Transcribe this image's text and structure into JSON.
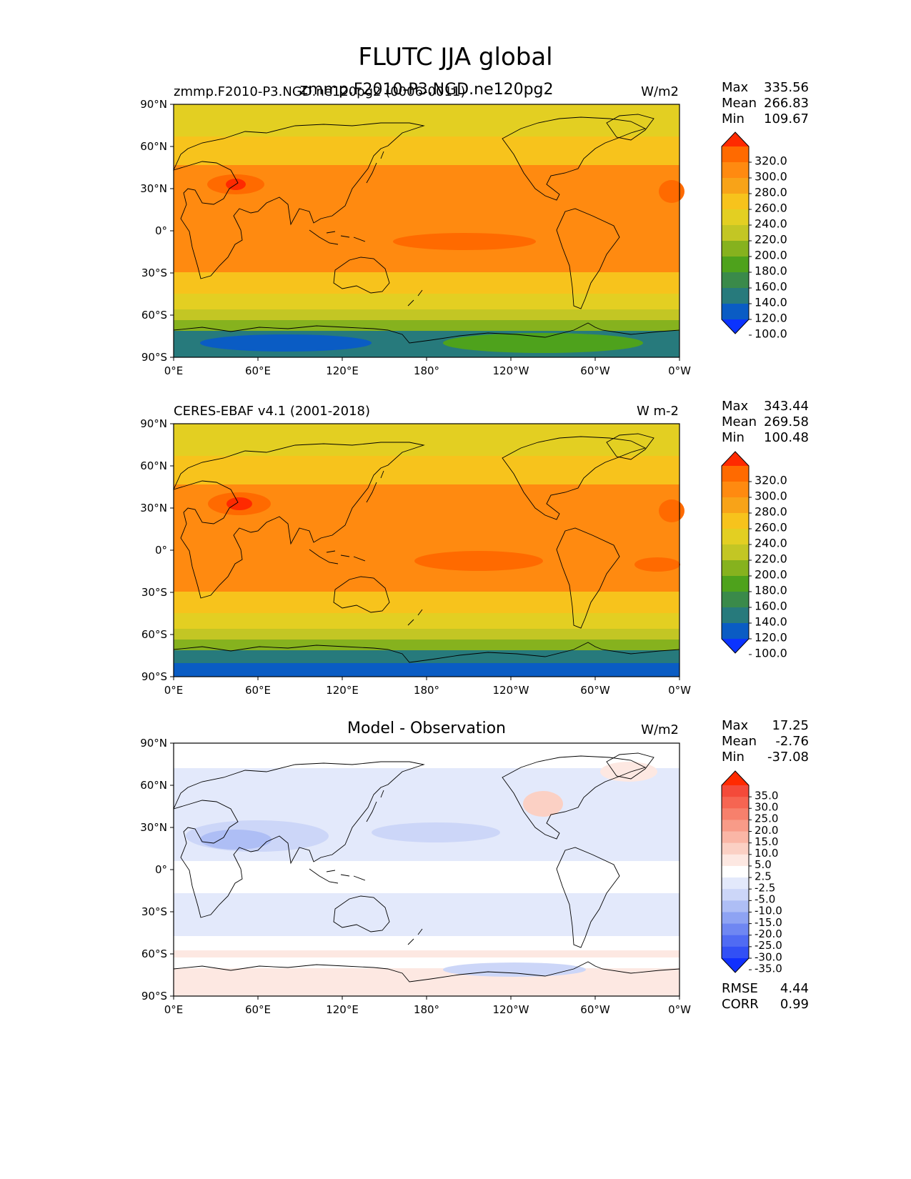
{
  "suptitle": "FLUTC JJA global",
  "panels": [
    {
      "id": "test",
      "title_left": "zmmp.F2010-P3.NGD.ne120pg2 (0006-0011)",
      "title_center": "zmmp.F2010-P3.NGD.ne120pg2",
      "title_right": "W/m2",
      "stats": {
        "max_label": "Max",
        "max": "335.56",
        "mean_label": "Mean",
        "mean": "266.83",
        "min_label": "Min",
        "min": "109.67"
      },
      "colorbar": {
        "labels": [
          "320.0",
          "300.0",
          "280.0",
          "260.0",
          "240.0",
          "220.0",
          "200.0",
          "180.0",
          "160.0",
          "140.0",
          "120.0",
          "100.0"
        ],
        "colors": [
          "#ff2a00",
          "#ff6a00",
          "#ff8a10",
          "#f8a318",
          "#f7c31c",
          "#e3cf22",
          "#c3c624",
          "#86b21e",
          "#4ea21c",
          "#3a8a4a",
          "#277a7c",
          "#0a5cc4",
          "#0b33ff"
        ]
      }
    },
    {
      "id": "ref",
      "title_left": "CERES-EBAF v4.1 (2001-2018)",
      "title_center": "",
      "title_right": "W m-2",
      "stats": {
        "max_label": "Max",
        "max": "343.44",
        "mean_label": "Mean",
        "mean": "269.58",
        "min_label": "Min",
        "min": "100.48"
      },
      "colorbar": {
        "labels": [
          "320.0",
          "300.0",
          "280.0",
          "260.0",
          "240.0",
          "220.0",
          "200.0",
          "180.0",
          "160.0",
          "140.0",
          "120.0",
          "100.0"
        ],
        "colors": [
          "#ff2a00",
          "#ff6a00",
          "#ff8a10",
          "#f8a318",
          "#f7c31c",
          "#e3cf22",
          "#c3c624",
          "#86b21e",
          "#4ea21c",
          "#3a8a4a",
          "#277a7c",
          "#0a5cc4",
          "#0b33ff"
        ]
      }
    },
    {
      "id": "diff",
      "title_left": "",
      "title_center": "Model - Observation",
      "title_right": "W/m2",
      "stats": {
        "max_label": "Max",
        "max": "17.25",
        "mean_label": "Mean",
        "mean": "-2.76",
        "min_label": "Min",
        "min": "-37.08"
      },
      "metrics": {
        "rmse_label": "RMSE",
        "rmse": "4.44",
        "corr_label": "CORR",
        "corr": "0.99"
      },
      "colorbar": {
        "labels": [
          "35.0",
          "30.0",
          "25.0",
          "20.0",
          "15.0",
          "10.0",
          "5.0",
          "2.5",
          "-2.5",
          "-5.0",
          "-10.0",
          "-15.0",
          "-20.0",
          "-25.0",
          "-30.0",
          "-35.0"
        ],
        "colors": [
          "#ff2a00",
          "#f44a3a",
          "#f66552",
          "#f7806c",
          "#f89b88",
          "#fab6a6",
          "#fbd0c4",
          "#fde8e2",
          "#ffffff",
          "#e3e9fb",
          "#ccd6f8",
          "#aebef5",
          "#8ea3f3",
          "#6f87f2",
          "#506bf3",
          "#3250f5",
          "#1030ff"
        ]
      }
    }
  ],
  "axes": {
    "yticks": [
      "90°N",
      "60°N",
      "30°N",
      "0°",
      "30°S",
      "60°S",
      "90°S"
    ],
    "xticks": [
      "0°E",
      "60°E",
      "120°E",
      "180°",
      "120°W",
      "60°W",
      "0°W"
    ]
  },
  "chart_data": [
    {
      "type": "heatmap",
      "title": "zmmp.F2010-P3.NGD.ne120pg2",
      "units": "W/m2",
      "xlim": [
        0,
        360
      ],
      "ylim": [
        -90,
        90
      ],
      "zonal_band_values": [
        {
          "lat": [
            60,
            90
          ],
          "value": 225
        },
        {
          "lat": [
            45,
            60
          ],
          "value": 245
        },
        {
          "lat": [
            -15,
            45
          ],
          "value": 275
        },
        {
          "lat": [
            -40,
            -15
          ],
          "value": 265
        },
        {
          "lat": [
            -55,
            -40
          ],
          "value": 240
        },
        {
          "lat": [
            -65,
            -55
          ],
          "value": 215
        },
        {
          "lat": [
            -72,
            -65
          ],
          "value": 190
        },
        {
          "lat": [
            -90,
            -72
          ],
          "value": 140
        }
      ],
      "max": 335.56,
      "mean": 266.83,
      "min": 109.67
    },
    {
      "type": "heatmap",
      "title": "CERES-EBAF v4.1 (2001-2018)",
      "units": "W m-2",
      "xlim": [
        0,
        360
      ],
      "ylim": [
        -90,
        90
      ],
      "zonal_band_values": [
        {
          "lat": [
            60,
            90
          ],
          "value": 225
        },
        {
          "lat": [
            45,
            60
          ],
          "value": 245
        },
        {
          "lat": [
            -15,
            45
          ],
          "value": 278
        },
        {
          "lat": [
            -40,
            -15
          ],
          "value": 268
        },
        {
          "lat": [
            -55,
            -40
          ],
          "value": 240
        },
        {
          "lat": [
            -65,
            -55
          ],
          "value": 215
        },
        {
          "lat": [
            -72,
            -65
          ],
          "value": 190
        },
        {
          "lat": [
            -90,
            -72
          ],
          "value": 125
        }
      ],
      "max": 343.44,
      "mean": 269.58,
      "min": 100.48
    },
    {
      "type": "heatmap",
      "title": "Model - Observation",
      "units": "W/m2",
      "xlim": [
        0,
        360
      ],
      "ylim": [
        -90,
        90
      ],
      "zonal_band_values": [
        {
          "lat": [
            70,
            90
          ],
          "value": 0
        },
        {
          "lat": [
            40,
            70
          ],
          "value": -3
        },
        {
          "lat": [
            10,
            40
          ],
          "value": -7
        },
        {
          "lat": [
            -10,
            10
          ],
          "value": -2
        },
        {
          "lat": [
            -40,
            -10
          ],
          "value": -4
        },
        {
          "lat": [
            -62,
            -40
          ],
          "value": -2
        },
        {
          "lat": [
            -68,
            -62
          ],
          "value": 4
        },
        {
          "lat": [
            -90,
            -68
          ],
          "value": 5
        }
      ],
      "max": 17.25,
      "mean": -2.76,
      "min": -37.08,
      "rmse": 4.44,
      "corr": 0.99
    }
  ]
}
